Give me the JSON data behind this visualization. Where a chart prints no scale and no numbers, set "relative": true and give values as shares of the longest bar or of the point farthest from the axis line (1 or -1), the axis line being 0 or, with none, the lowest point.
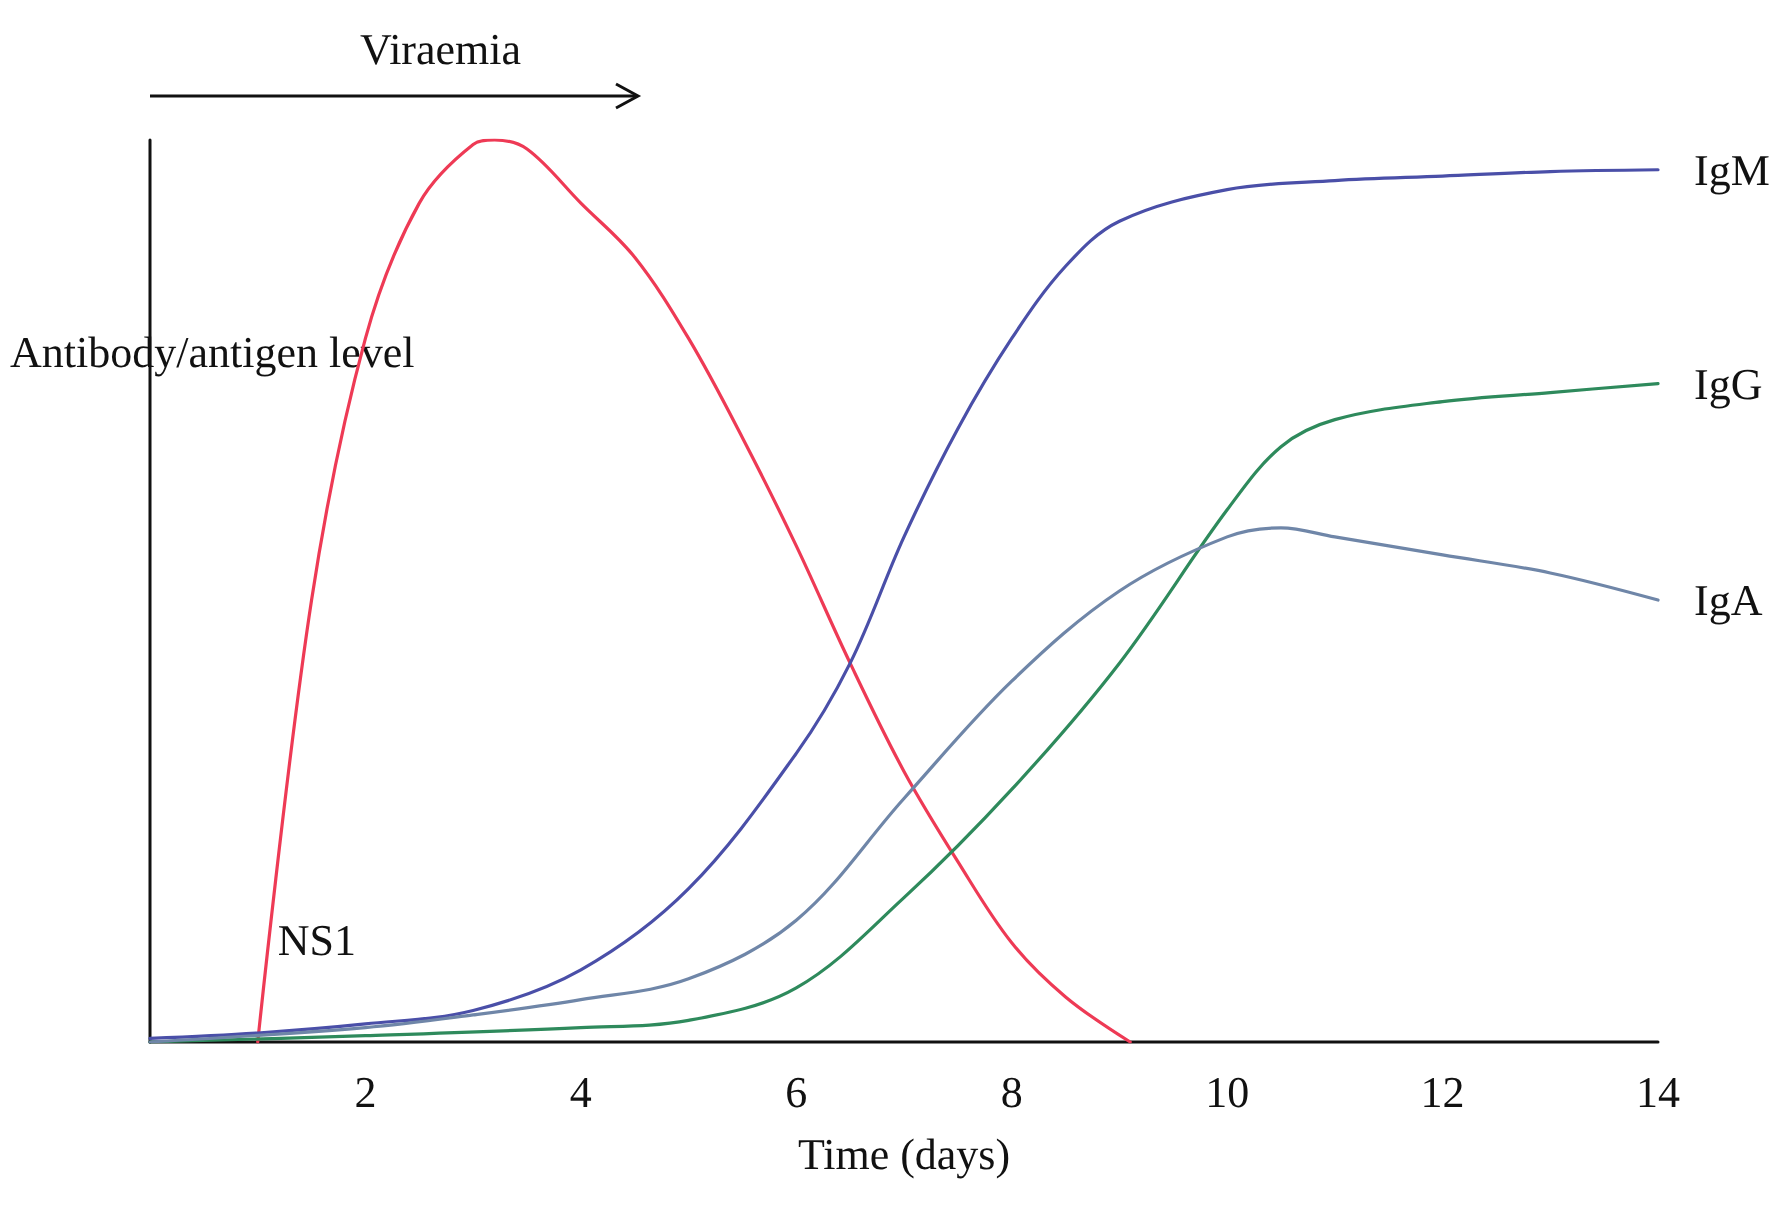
{
  "chart_data": {
    "type": "line",
    "relative": true,
    "xlabel": "Time (days)",
    "ylabel": "Antibody/antigen level",
    "xlim": [
      0,
      14
    ],
    "xticks": [
      2,
      4,
      6,
      8,
      10,
      12,
      14
    ],
    "grid": false,
    "legend": false,
    "marker": "none",
    "line_style": "solid",
    "annotations": [
      "Viraemia"
    ],
    "series": [
      {
        "name": "NS1",
        "color": "#ee3a55",
        "x": [
          1,
          1.5,
          2,
          2.5,
          3,
          3.2,
          3.5,
          4,
          4.5,
          5,
          5.5,
          6,
          6.5,
          7,
          7.5,
          8,
          8.5,
          9.1
        ],
        "values": [
          0,
          0.49,
          0.78,
          0.93,
          0.995,
          1,
          0.99,
          0.93,
          0.87,
          0.78,
          0.67,
          0.55,
          0.42,
          0.3,
          0.2,
          0.11,
          0.05,
          0
        ]
      },
      {
        "name": "IgM",
        "color": "#4a4fa8",
        "x": [
          0,
          1,
          2,
          3,
          4,
          5,
          6,
          6.5,
          7,
          7.5,
          8,
          8.5,
          9,
          10,
          11,
          12,
          13,
          14
        ],
        "values": [
          0.004,
          0.01,
          0.02,
          0.035,
          0.08,
          0.17,
          0.32,
          0.42,
          0.56,
          0.68,
          0.78,
          0.86,
          0.91,
          0.945,
          0.955,
          0.96,
          0.965,
          0.967
        ]
      },
      {
        "name": "IgG",
        "color": "#2e8a5c",
        "x": [
          0,
          2,
          4,
          5,
          6,
          7,
          8,
          9,
          10,
          10.5,
          11,
          12,
          13,
          14
        ],
        "values": [
          0,
          0.007,
          0.016,
          0.024,
          0.06,
          0.16,
          0.28,
          0.42,
          0.59,
          0.66,
          0.69,
          0.71,
          0.72,
          0.73
        ]
      },
      {
        "name": "IgA",
        "color": "#6f86a8",
        "x": [
          0,
          2,
          3,
          4,
          5,
          6,
          7,
          8,
          9,
          10,
          10.5,
          11,
          12,
          13,
          14
        ],
        "values": [
          0,
          0.016,
          0.03,
          0.047,
          0.07,
          0.135,
          0.27,
          0.4,
          0.5,
          0.56,
          0.57,
          0.56,
          0.54,
          0.52,
          0.49
        ]
      }
    ]
  }
}
